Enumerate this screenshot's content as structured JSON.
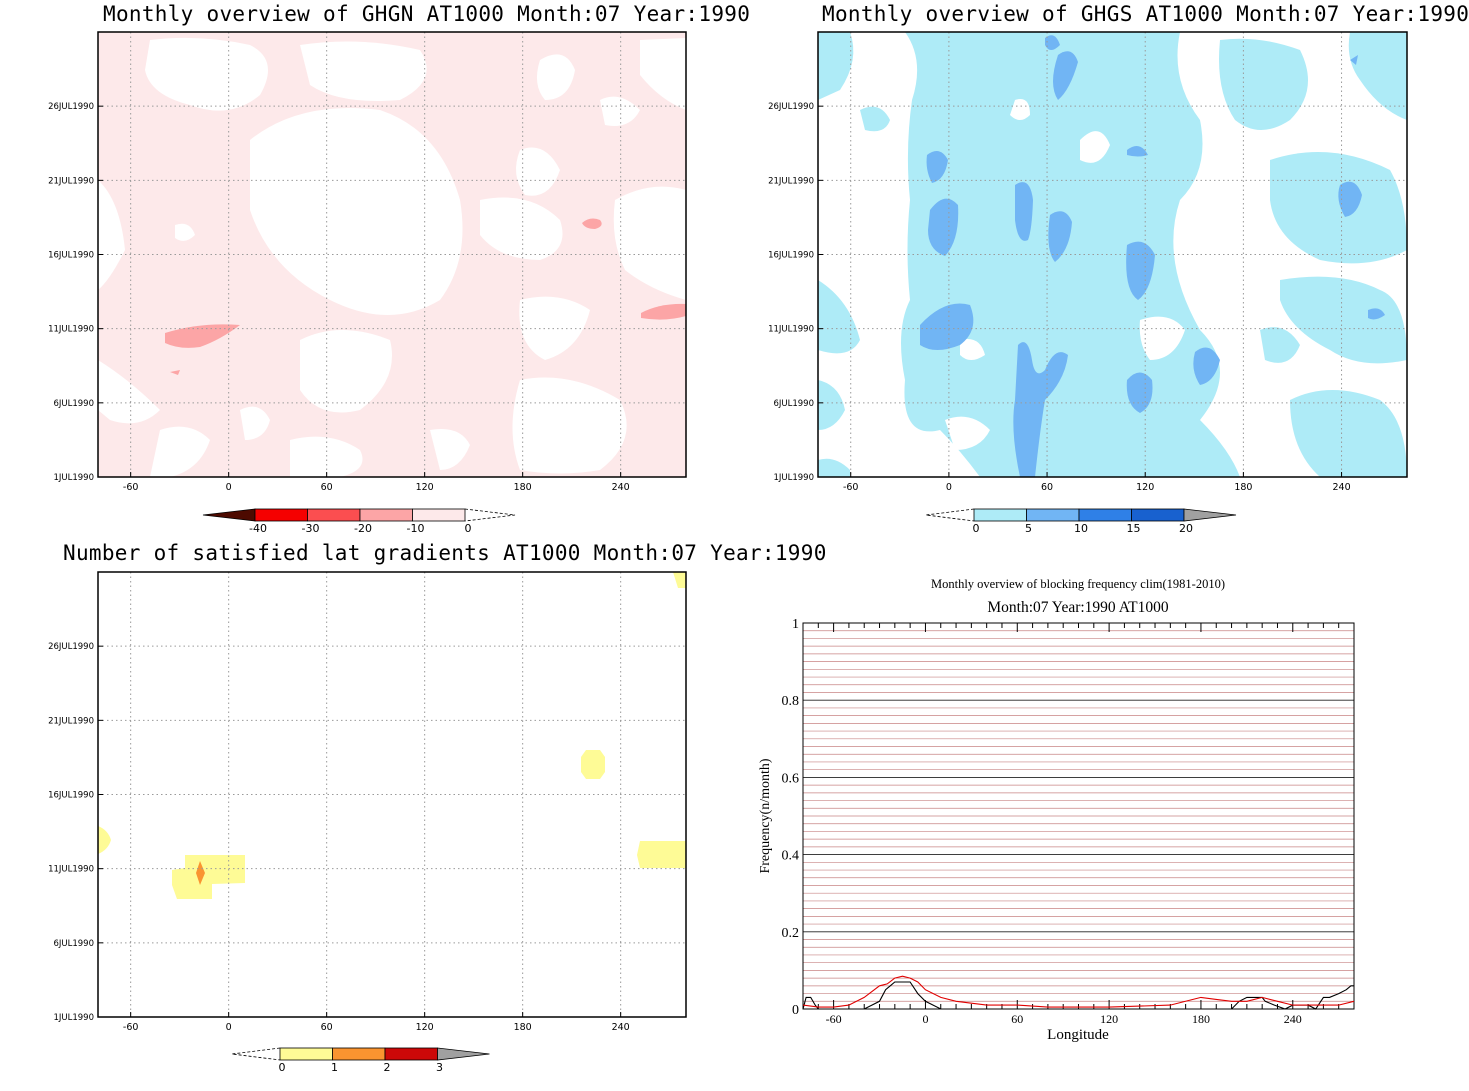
{
  "panels": {
    "ghgn": {
      "title": "Monthly overview of GHGN AT1000 Month:07 Year:1990"
    },
    "ghgs": {
      "title": "Monthly overview of GHGS AT1000 Month:07 Year:1990"
    },
    "grad": {
      "title": "Number of satisfied lat gradients AT1000 Month:07 Year:1990"
    },
    "freq": {
      "title": "Monthly overview of blocking frequency clim(1981-2010)",
      "subtitle": "Month:07 Year:1990  AT1000"
    }
  },
  "colors": {
    "ghgn": [
      "#4d0a00",
      "#f50000",
      "#fb4e50",
      "#fca5a6",
      "#fde9ea"
    ],
    "ghgs": [
      "#aeebf7",
      "#71b5f4",
      "#2f80e7",
      "#1861cf",
      "#a0a0a0"
    ],
    "grad": [
      "#fefb96",
      "#fa9430",
      "#cc0808",
      "#a0a0a0"
    ]
  },
  "chart_data": [
    {
      "type": "heatmap",
      "title": "Monthly overview of GHGN AT1000 Month:07 Year:1990",
      "x_ticks": [
        "-60",
        "0",
        "60",
        "120",
        "180",
        "240"
      ],
      "y_ticks": [
        "1JUL1990",
        "6JUL1990",
        "11JUL1990",
        "16JUL1990",
        "21JUL1990",
        "26JUL1990"
      ],
      "xlim": [
        -80,
        280
      ],
      "ylim": [
        1,
        31
      ],
      "colorbar": [
        "-40",
        "-30",
        "-20",
        "-10",
        "0"
      ],
      "regions": [
        {
          "level": "-20 to -10",
          "x": -25,
          "y": 11.3
        },
        {
          "level": "-20 to -10",
          "x": 223,
          "y": 18.5
        },
        {
          "level": "-20 to -10",
          "x": 265,
          "y": 12.1
        },
        {
          "level": "-20 to -10",
          "x": -33,
          "y": 8.7
        }
      ]
    },
    {
      "type": "heatmap",
      "title": "Monthly overview of GHGS AT1000 Month:07 Year:1990",
      "x_ticks": [
        "-60",
        "0",
        "60",
        "120",
        "180",
        "240"
      ],
      "y_ticks": [
        "1JUL1990",
        "6JUL1990",
        "11JUL1990",
        "16JUL1990",
        "21JUL1990",
        "26JUL1990"
      ],
      "xlim": [
        -80,
        280
      ],
      "ylim": [
        1,
        31
      ],
      "colorbar": [
        "0",
        "5",
        "10",
        "15",
        "20"
      ],
      "regions": [
        {
          "level": "5 to 10",
          "x": 0,
          "y": 21.1
        },
        {
          "level": "5 to 10",
          "x": 45,
          "y": 18.3
        },
        {
          "level": "5 to 10",
          "x": 0,
          "y": 17.5
        },
        {
          "level": "5 to 10",
          "x": 65,
          "y": 17.3
        },
        {
          "level": "5 to 10",
          "x": 117,
          "y": 15.9
        },
        {
          "level": "5 to 10",
          "x": -1,
          "y": 11.2
        },
        {
          "level": "5 to 10",
          "x": 45,
          "y": 5.4
        },
        {
          "level": "5 to 10",
          "x": 65,
          "y": 9.0
        },
        {
          "level": "5 to 10",
          "x": 115,
          "y": 7.7
        },
        {
          "level": "5 to 10",
          "x": 155,
          "y": 9.3
        },
        {
          "level": "5 to 10",
          "x": 245,
          "y": 22.4
        },
        {
          "level": "5 to 10",
          "x": 267,
          "y": 11.1
        },
        {
          "level": "5 to 10",
          "x": 70,
          "y": 28.3
        },
        {
          "level": "5 to 10",
          "x": 115,
          "y": 22.2
        }
      ]
    },
    {
      "type": "heatmap",
      "title": "Number of satisfied lat gradients AT1000 Month:07 Year:1990",
      "x_ticks": [
        "-60",
        "0",
        "60",
        "120",
        "180",
        "240"
      ],
      "y_ticks": [
        "1JUL1990",
        "6JUL1990",
        "11JUL1990",
        "16JUL1990",
        "21JUL1990",
        "26JUL1990"
      ],
      "xlim": [
        -80,
        280
      ],
      "ylim": [
        1,
        31
      ],
      "colorbar": [
        "0",
        "1",
        "2",
        "3"
      ],
      "regions": [
        {
          "level": "0 to 1",
          "x": -17,
          "y": 10.7
        },
        {
          "level": "1 to 2",
          "x": -17,
          "y": 10.7
        },
        {
          "level": "0 to 1",
          "x": 223,
          "y": 18.0
        },
        {
          "level": "0 to 1",
          "x": 265,
          "y": 11.5
        },
        {
          "level": "0 to 1",
          "x": -76,
          "y": 12.9
        },
        {
          "level": "0 to 1",
          "x": 276,
          "y": 30.7
        }
      ]
    },
    {
      "type": "line",
      "title": "Monthly overview of blocking frequency clim(1981-2010)",
      "subtitle": "Month:07 Year:1990  AT1000",
      "xlabel": "Longitude",
      "ylabel": "Frequency(n/month)",
      "x_ticks": [
        "-60",
        "0",
        "60",
        "120",
        "180",
        "240"
      ],
      "y_ticks": [
        "0",
        "0.2",
        "0.4",
        "0.6",
        "0.8",
        "1"
      ],
      "xlim": [
        -80,
        280
      ],
      "ylim": [
        0,
        1
      ],
      "series": [
        {
          "color": "#000000",
          "x": [
            -80,
            -78,
            -75,
            -72,
            -70,
            -60,
            -50,
            -40,
            -35,
            -30,
            -26,
            -20,
            -10,
            -5,
            0,
            10,
            20,
            30,
            60,
            120,
            180,
            200,
            205,
            210,
            215,
            220,
            222,
            228,
            235,
            240,
            250,
            255,
            260,
            264,
            270,
            275,
            278,
            280
          ],
          "y": [
            0,
            0.03,
            0.03,
            0.01,
            0,
            0,
            0,
            0,
            0.01,
            0.02,
            0.05,
            0.07,
            0.07,
            0.04,
            0.02,
            0,
            0,
            0,
            0,
            0,
            0,
            0,
            0.02,
            0.03,
            0.03,
            0.03,
            0.02,
            0.01,
            0,
            0.01,
            0.01,
            0,
            0.03,
            0.03,
            0.04,
            0.05,
            0.06,
            0.06
          ]
        },
        {
          "color": "#e00000",
          "x": [
            -80,
            -70,
            -60,
            -50,
            -40,
            -35,
            -30,
            -25,
            -20,
            -15,
            -10,
            -5,
            0,
            10,
            20,
            40,
            60,
            80,
            120,
            160,
            180,
            190,
            200,
            210,
            220,
            230,
            240,
            250,
            260,
            270,
            280
          ],
          "y": [
            0.01,
            0.005,
            0.005,
            0.01,
            0.03,
            0.045,
            0.06,
            0.065,
            0.08,
            0.085,
            0.08,
            0.07,
            0.05,
            0.03,
            0.02,
            0.01,
            0.01,
            0.005,
            0.005,
            0.01,
            0.03,
            0.025,
            0.02,
            0.02,
            0.03,
            0.02,
            0.01,
            0.01,
            0.01,
            0.01,
            0.02
          ]
        }
      ]
    }
  ]
}
